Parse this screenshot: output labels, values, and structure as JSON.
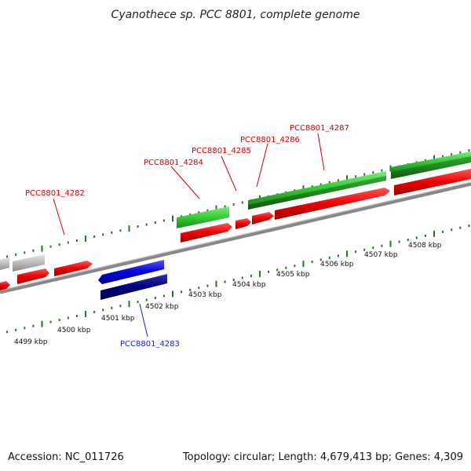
{
  "title": "Cyanothece sp. PCC 8801, complete genome",
  "footer": {
    "accession": "Accession: NC_011726",
    "topology": "Topology: circular; Length: 4,679,413 bp; Genes: 4,309"
  },
  "kbp_labels": [
    "4499 kbp",
    "4500 kbp",
    "4501 kbp",
    "4502 kbp",
    "4503 kbp",
    "4504 kbp",
    "4505 kbp",
    "4506 kbp",
    "4507 kbp",
    "4508 kbp"
  ],
  "gene_labels": [
    "PCC8801_4282",
    "PCC8801_4283",
    "PCC8801_4284",
    "PCC8801_4285",
    "PCC8801_4286",
    "PCC8801_4287"
  ],
  "colors": {
    "cds_forward": "#ee0000",
    "cds_reverse": "#0000dd",
    "cds_reverse_dark": "#000080",
    "gene_green": "#33cc33",
    "gene_green_dark": "#228822",
    "gene_gray": "#bbbbbb",
    "tick_green": "#227722",
    "backbone": "#888888"
  }
}
